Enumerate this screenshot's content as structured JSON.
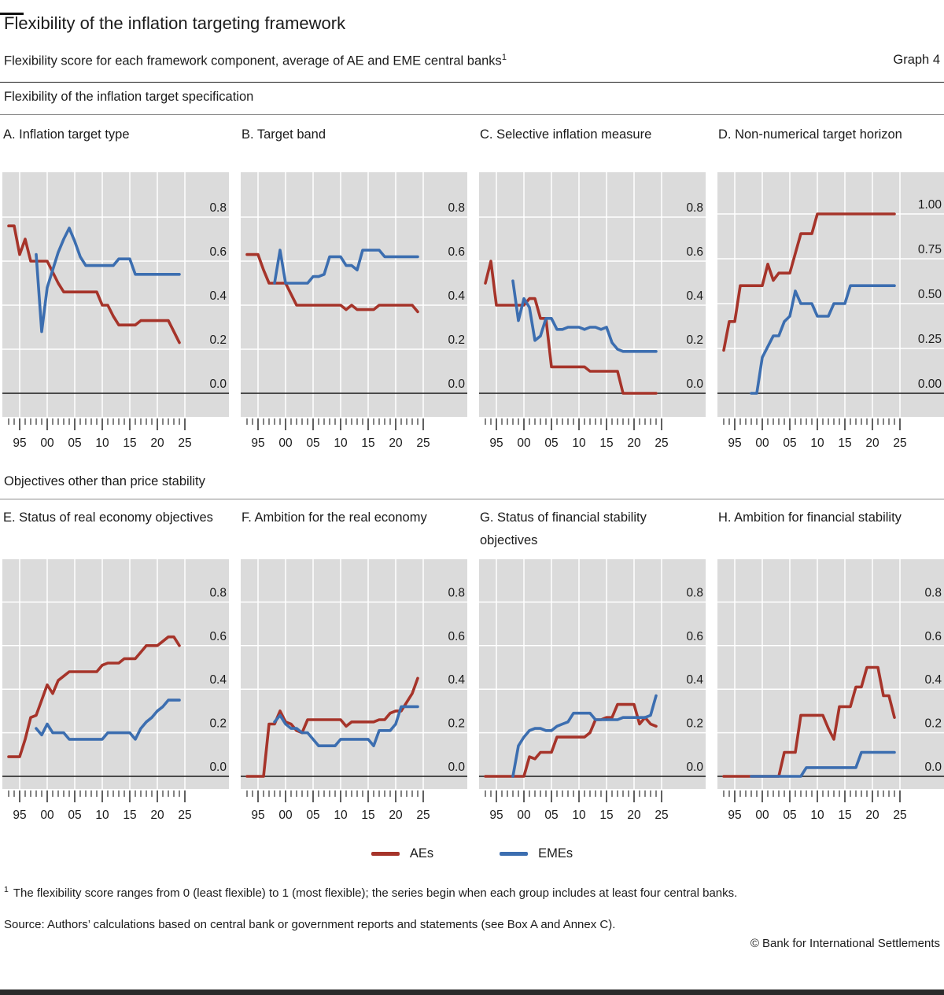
{
  "page": {
    "title": "Flexibility of the inflation targeting framework",
    "subtitle": "Flexibility score for each framework component, average of AE and EME central banks",
    "subtitle_footnote_marker": "1",
    "graph_label": "Graph 4",
    "footnote_marker": "1",
    "footnote": "The flexibility score ranges from 0 (least flexible) to 1 (most flexible); the series begin when each group includes at least four central banks.",
    "source": "Source: Authors’ calculations based on central bank or government reports and statements (see Box A and Annex C).",
    "copyright": "© Bank for International Settlements"
  },
  "sections": [
    {
      "header": "Flexibility of the inflation target specification"
    },
    {
      "header": "Objectives other than price stability"
    }
  ],
  "legend": [
    {
      "label": "AEs",
      "color": "#A6342A"
    },
    {
      "label": "EMEs",
      "color": "#3C6EB0"
    }
  ],
  "colors": {
    "aes_red": "#A6342A",
    "emes_blue": "#3C6EB0",
    "plot_background": "#DBDBDB",
    "gridline": "#FFFFFF",
    "zero_axis": "#1b1b1b",
    "text": "#1b1b1b"
  },
  "chart_data": {
    "type": "line",
    "x_axis": {
      "start_year": 1993,
      "end_year": 2024,
      "minor_tick_first_year": 1993,
      "minor_tick_last_year": 2025,
      "tick_labels": [
        "95",
        "00",
        "05",
        "10",
        "15",
        "20",
        "25"
      ],
      "tick_label_years": [
        1995,
        2000,
        2005,
        2010,
        2015,
        2020,
        2025
      ]
    },
    "panels": [
      {
        "id": "A",
        "section": 0,
        "title": "A. Inflation target type",
        "y_axis": {
          "tick_labels": [
            "0.8",
            "0.6",
            "0.4",
            "0.2",
            "0.0"
          ],
          "tick_values": [
            0.8,
            0.6,
            0.4,
            0.2,
            0.0
          ]
        },
        "series": [
          {
            "name": "AEs",
            "start_year": 1993,
            "values": [
              0.76,
              0.76,
              0.63,
              0.7,
              0.6,
              0.6,
              0.6,
              0.6,
              0.55,
              0.5,
              0.46,
              0.46,
              0.46,
              0.46,
              0.46,
              0.46,
              0.46,
              0.4,
              0.4,
              0.35,
              0.31,
              0.31,
              0.31,
              0.31,
              0.33,
              0.33,
              0.33,
              0.33,
              0.33,
              0.33,
              0.28,
              0.23
            ]
          },
          {
            "name": "EMEs",
            "start_year": 1998,
            "values": [
              0.63,
              0.28,
              0.48,
              0.56,
              0.64,
              0.7,
              0.75,
              0.69,
              0.62,
              0.58,
              0.58,
              0.58,
              0.58,
              0.58,
              0.58,
              0.61,
              0.61,
              0.61,
              0.54,
              0.54,
              0.54,
              0.54,
              0.54,
              0.54,
              0.54,
              0.54,
              0.54
            ]
          }
        ]
      },
      {
        "id": "B",
        "section": 0,
        "title": "B. Target band",
        "y_axis": {
          "tick_labels": [
            "0.8",
            "0.6",
            "0.4",
            "0.2",
            "0.0"
          ],
          "tick_values": [
            0.8,
            0.6,
            0.4,
            0.2,
            0.0
          ]
        },
        "series": [
          {
            "name": "AEs",
            "start_year": 1993,
            "values": [
              0.63,
              0.63,
              0.63,
              0.56,
              0.5,
              0.5,
              0.5,
              0.5,
              0.45,
              0.4,
              0.4,
              0.4,
              0.4,
              0.4,
              0.4,
              0.4,
              0.4,
              0.4,
              0.38,
              0.4,
              0.38,
              0.38,
              0.38,
              0.38,
              0.4,
              0.4,
              0.4,
              0.4,
              0.4,
              0.4,
              0.4,
              0.37
            ]
          },
          {
            "name": "EMEs",
            "start_year": 1998,
            "values": [
              0.5,
              0.65,
              0.5,
              0.5,
              0.5,
              0.5,
              0.5,
              0.53,
              0.53,
              0.54,
              0.62,
              0.62,
              0.62,
              0.58,
              0.58,
              0.56,
              0.65,
              0.65,
              0.65,
              0.65,
              0.62,
              0.62,
              0.62,
              0.62,
              0.62,
              0.62,
              0.62
            ]
          }
        ]
      },
      {
        "id": "C",
        "section": 0,
        "title": "C. Selective inflation measure",
        "y_axis": {
          "tick_labels": [
            "0.8",
            "0.6",
            "0.4",
            "0.2",
            "0.0"
          ],
          "tick_values": [
            0.8,
            0.6,
            0.4,
            0.2,
            0.0
          ]
        },
        "series": [
          {
            "name": "AEs",
            "start_year": 1993,
            "values": [
              0.5,
              0.6,
              0.4,
              0.4,
              0.4,
              0.4,
              0.4,
              0.4,
              0.43,
              0.43,
              0.34,
              0.34,
              0.12,
              0.12,
              0.12,
              0.12,
              0.12,
              0.12,
              0.12,
              0.1,
              0.1,
              0.1,
              0.1,
              0.1,
              0.1,
              0.0,
              0.0,
              0.0,
              0.0,
              0.0,
              0.0,
              0.0
            ]
          },
          {
            "name": "EMEs",
            "start_year": 1998,
            "values": [
              0.51,
              0.33,
              0.43,
              0.39,
              0.24,
              0.26,
              0.34,
              0.34,
              0.29,
              0.29,
              0.3,
              0.3,
              0.3,
              0.29,
              0.3,
              0.3,
              0.29,
              0.3,
              0.23,
              0.2,
              0.19,
              0.19,
              0.19,
              0.19,
              0.19,
              0.19,
              0.19
            ]
          }
        ]
      },
      {
        "id": "D",
        "section": 0,
        "title": "D. Non-numerical target horizon",
        "y_axis": {
          "tick_labels": [
            "1.00",
            "0.75",
            "0.50",
            "0.25",
            "0.00"
          ],
          "tick_values": [
            1.0,
            0.75,
            0.5,
            0.25,
            0.0
          ]
        },
        "series": [
          {
            "name": "AEs",
            "start_year": 1993,
            "values": [
              0.24,
              0.4,
              0.4,
              0.6,
              0.6,
              0.6,
              0.6,
              0.6,
              0.72,
              0.63,
              0.67,
              0.67,
              0.67,
              0.78,
              0.89,
              0.89,
              0.89,
              1.0,
              1.0,
              1.0,
              1.0,
              1.0,
              1.0,
              1.0,
              1.0,
              1.0,
              1.0,
              1.0,
              1.0,
              1.0,
              1.0,
              1.0
            ]
          },
          {
            "name": "EMEs",
            "start_year": 1998,
            "values": [
              0.0,
              0.0,
              0.2,
              0.26,
              0.32,
              0.32,
              0.4,
              0.43,
              0.57,
              0.5,
              0.5,
              0.5,
              0.43,
              0.43,
              0.43,
              0.5,
              0.5,
              0.5,
              0.6,
              0.6,
              0.6,
              0.6,
              0.6,
              0.6,
              0.6,
              0.6,
              0.6
            ]
          }
        ]
      },
      {
        "id": "E",
        "section": 1,
        "title": "E. Status of real economy objectives",
        "y_axis": {
          "tick_labels": [
            "0.8",
            "0.6",
            "0.4",
            "0.2",
            "0.0"
          ],
          "tick_values": [
            0.8,
            0.6,
            0.4,
            0.2,
            0.0
          ]
        },
        "series": [
          {
            "name": "AEs",
            "start_year": 1993,
            "values": [
              0.09,
              0.09,
              0.09,
              0.17,
              0.27,
              0.28,
              0.35,
              0.42,
              0.38,
              0.44,
              0.46,
              0.48,
              0.48,
              0.48,
              0.48,
              0.48,
              0.48,
              0.51,
              0.52,
              0.52,
              0.52,
              0.54,
              0.54,
              0.54,
              0.57,
              0.6,
              0.6,
              0.6,
              0.62,
              0.64,
              0.64,
              0.6
            ]
          },
          {
            "name": "EMEs",
            "start_year": 1998,
            "values": [
              0.22,
              0.19,
              0.24,
              0.2,
              0.2,
              0.2,
              0.17,
              0.17,
              0.17,
              0.17,
              0.17,
              0.17,
              0.17,
              0.2,
              0.2,
              0.2,
              0.2,
              0.2,
              0.17,
              0.22,
              0.25,
              0.27,
              0.3,
              0.32,
              0.35,
              0.35,
              0.35
            ]
          }
        ]
      },
      {
        "id": "F",
        "section": 1,
        "title": "F. Ambition for the real economy",
        "y_axis": {
          "tick_labels": [
            "0.8",
            "0.6",
            "0.4",
            "0.2",
            "0.0"
          ],
          "tick_values": [
            0.8,
            0.6,
            0.4,
            0.2,
            0.0
          ]
        },
        "series": [
          {
            "name": "AEs",
            "start_year": 1993,
            "values": [
              0.0,
              0.0,
              0.0,
              0.0,
              0.24,
              0.24,
              0.3,
              0.25,
              0.24,
              0.21,
              0.2,
              0.26,
              0.26,
              0.26,
              0.26,
              0.26,
              0.26,
              0.26,
              0.23,
              0.25,
              0.25,
              0.25,
              0.25,
              0.25,
              0.26,
              0.26,
              0.29,
              0.3,
              0.3,
              0.34,
              0.38,
              0.45
            ]
          },
          {
            "name": "EMEs",
            "start_year": 1998,
            "values": [
              0.25,
              0.28,
              0.24,
              0.22,
              0.22,
              0.2,
              0.2,
              0.17,
              0.14,
              0.14,
              0.14,
              0.14,
              0.17,
              0.17,
              0.17,
              0.17,
              0.17,
              0.17,
              0.14,
              0.21,
              0.21,
              0.21,
              0.24,
              0.32,
              0.32,
              0.32,
              0.32
            ]
          }
        ]
      },
      {
        "id": "G",
        "section": 1,
        "title": "G. Status of financial stability objectives",
        "y_axis": {
          "tick_labels": [
            "0.8",
            "0.6",
            "0.4",
            "0.2",
            "0.0"
          ],
          "tick_values": [
            0.8,
            0.6,
            0.4,
            0.2,
            0.0
          ]
        },
        "series": [
          {
            "name": "AEs",
            "start_year": 1993,
            "values": [
              0,
              0,
              0,
              0,
              0,
              0,
              0,
              0,
              0.09,
              0.08,
              0.11,
              0.11,
              0.11,
              0.18,
              0.18,
              0.18,
              0.18,
              0.18,
              0.18,
              0.2,
              0.26,
              0.26,
              0.27,
              0.27,
              0.33,
              0.33,
              0.33,
              0.33,
              0.24,
              0.27,
              0.24,
              0.23
            ]
          },
          {
            "name": "EMEs",
            "start_year": 1998,
            "values": [
              0.0,
              0.14,
              0.18,
              0.21,
              0.22,
              0.22,
              0.21,
              0.21,
              0.23,
              0.24,
              0.25,
              0.29,
              0.29,
              0.29,
              0.29,
              0.26,
              0.26,
              0.26,
              0.26,
              0.26,
              0.27,
              0.27,
              0.27,
              0.27,
              0.27,
              0.28,
              0.37
            ]
          }
        ]
      },
      {
        "id": "H",
        "section": 1,
        "title": "H. Ambition for financial stability",
        "y_axis": {
          "tick_labels": [
            "0.8",
            "0.6",
            "0.4",
            "0.2",
            "0.0"
          ],
          "tick_values": [
            0.8,
            0.6,
            0.4,
            0.2,
            0.0
          ]
        },
        "series": [
          {
            "name": "AEs",
            "start_year": 1993,
            "values": [
              0,
              0,
              0,
              0,
              0,
              0,
              0,
              0,
              0,
              0,
              0,
              0.11,
              0.11,
              0.11,
              0.28,
              0.28,
              0.28,
              0.28,
              0.28,
              0.22,
              0.17,
              0.32,
              0.32,
              0.32,
              0.41,
              0.41,
              0.5,
              0.5,
              0.5,
              0.37,
              0.37,
              0.27
            ]
          },
          {
            "name": "EMEs",
            "start_year": 1998,
            "values": [
              0,
              0,
              0,
              0,
              0,
              0,
              0,
              0,
              0,
              0,
              0.04,
              0.04,
              0.04,
              0.04,
              0.04,
              0.04,
              0.04,
              0.04,
              0.04,
              0.04,
              0.11,
              0.11,
              0.11,
              0.11,
              0.11,
              0.11,
              0.11
            ]
          }
        ]
      }
    ]
  }
}
